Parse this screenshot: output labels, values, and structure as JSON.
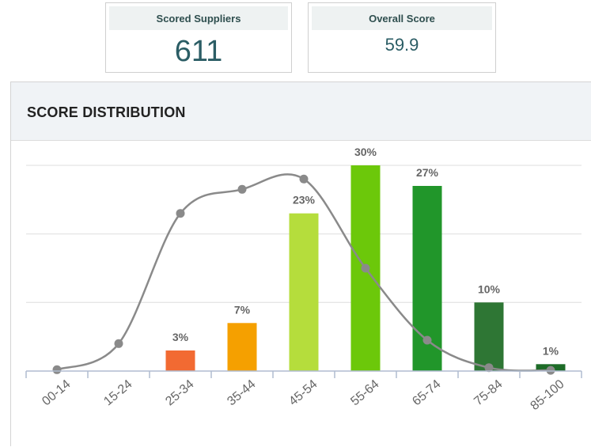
{
  "kpis": {
    "scored_suppliers": {
      "label": "Scored Suppliers",
      "value": "611"
    },
    "overall_score": {
      "label": "Overall Score",
      "value": "59.9"
    }
  },
  "panel": {
    "title": "SCORE DISTRIBUTION"
  },
  "chart_data": {
    "type": "bar",
    "title": "SCORE DISTRIBUTION",
    "categories": [
      "00-14",
      "15-24",
      "25-34",
      "35-44",
      "45-54",
      "55-64",
      "65-74",
      "75-84",
      "85-100"
    ],
    "values": [
      0,
      0,
      3,
      7,
      23,
      30,
      27,
      10,
      1
    ],
    "data_labels": [
      "",
      "",
      "3%",
      "7%",
      "23%",
      "30%",
      "27%",
      "10%",
      "1%"
    ],
    "bar_colors": [
      "#cccccc",
      "#cccccc",
      "#f26a32",
      "#f5a000",
      "#b5dd3c",
      "#6cc80a",
      "#21962a",
      "#2e7634",
      "#1d6b27"
    ],
    "curve": {
      "name": "distribution curve",
      "color": "#8a8a8a",
      "values": [
        0.2,
        4,
        23,
        26.5,
        28,
        15,
        4.5,
        0.5,
        0.1
      ]
    },
    "ylim": [
      0,
      30
    ],
    "grid": true,
    "xlabel": "",
    "ylabel": ""
  }
}
